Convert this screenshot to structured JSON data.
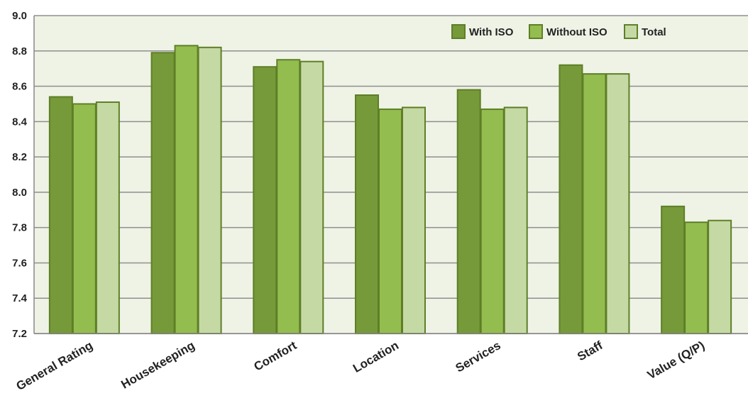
{
  "chart_data": {
    "type": "bar",
    "title": "",
    "xlabel": "",
    "ylabel": "",
    "ylim": [
      7.2,
      9.0
    ],
    "yticks": [
      "7.2",
      "7.4",
      "7.6",
      "7.8",
      "8.0",
      "8.2",
      "8.4",
      "8.6",
      "8.8",
      "9.0"
    ],
    "grid": "horizontal",
    "legend_position": "top-right",
    "categories": [
      "General Rating",
      "Housekeeping",
      "Comfort",
      "Location",
      "Services",
      "Staff",
      "Value (Q/P)"
    ],
    "series": [
      {
        "name": "With ISO",
        "color": "#76993a",
        "values": [
          8.54,
          8.79,
          8.71,
          8.55,
          8.58,
          8.72,
          7.92
        ]
      },
      {
        "name": "Without ISO",
        "color": "#94bd4f",
        "values": [
          8.5,
          8.83,
          8.75,
          8.47,
          8.47,
          8.67,
          7.83
        ]
      },
      {
        "name": "Total",
        "color": "#c5d9a5",
        "values": [
          8.51,
          8.82,
          8.74,
          8.48,
          8.48,
          8.67,
          7.84
        ]
      }
    ]
  }
}
